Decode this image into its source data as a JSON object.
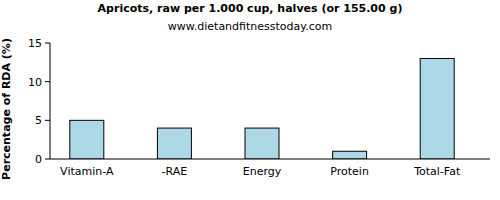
{
  "chart_data": {
    "type": "bar",
    "title": "Apricots, raw per 1.000 cup, halves (or 155.00 g)",
    "subtitle": "www.dietandfitnesstoday.com",
    "y_label": "Percentage of RDA (%)",
    "categories": [
      "Vitamin-A",
      "-RAE",
      "Energy",
      "Protein",
      "Total-Fat"
    ],
    "values": [
      5,
      4,
      4,
      1,
      13
    ],
    "color": "#add8e6",
    "ylim": [
      0,
      15
    ],
    "yticks": [
      0,
      5,
      10,
      15
    ],
    "grid": false
  }
}
